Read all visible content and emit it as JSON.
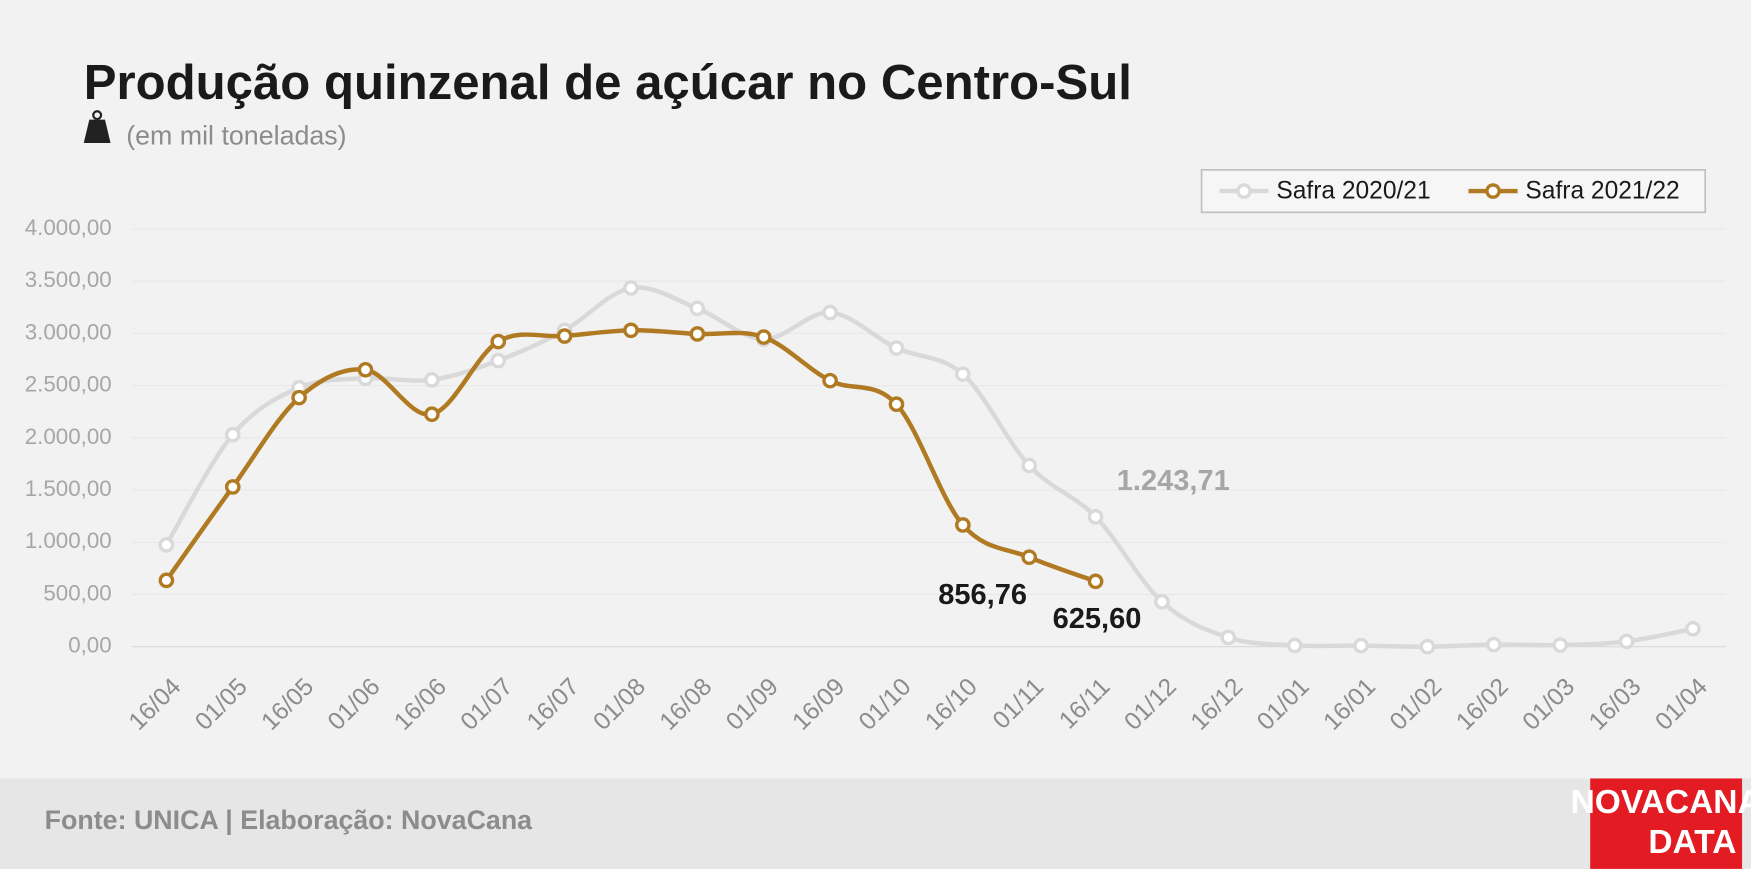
{
  "chart_data": {
    "type": "line",
    "title": "Produção quinzenal de açúcar no Centro-Sul",
    "subtitle": "(em mil toneladas)",
    "source": "Fonte: UNICA | Elaboração: NovaCana",
    "logo": [
      "NOVACANA",
      "DATA"
    ],
    "categories": [
      "16/04",
      "01/05",
      "16/05",
      "01/06",
      "16/06",
      "01/07",
      "16/07",
      "01/08",
      "16/08",
      "01/09",
      "16/09",
      "01/10",
      "16/10",
      "01/11",
      "16/11",
      "01/12",
      "16/12",
      "01/01",
      "16/01",
      "01/02",
      "16/02",
      "01/03",
      "16/03",
      "01/04"
    ],
    "series": [
      {
        "name": "Safra 2020/21",
        "color": "#d9d9d9",
        "values": [
          975,
          2030,
          2480,
          2570,
          2556,
          2740,
          3030,
          3435,
          3240,
          2945,
          3200,
          2860,
          2610,
          1735,
          1243.71,
          430,
          88,
          12,
          10,
          0,
          20,
          15,
          50,
          172
        ],
        "value_labels": [
          null,
          null,
          null,
          null,
          null,
          null,
          null,
          null,
          null,
          null,
          null,
          null,
          null,
          null,
          "1.243,71",
          null,
          null,
          null,
          null,
          null,
          null,
          null,
          null,
          null
        ],
        "label_color": "#a6a6a6"
      },
      {
        "name": "Safra 2021/22",
        "color": "#b07a22",
        "values": [
          635,
          1530,
          2385,
          2652,
          2226,
          2922,
          2975,
          3030,
          2995,
          2965,
          2548,
          2322,
          1166,
          856.76,
          625.6,
          null,
          null,
          null,
          null,
          null,
          null,
          null,
          null,
          null
        ],
        "value_labels": [
          null,
          null,
          null,
          null,
          null,
          null,
          null,
          null,
          null,
          null,
          null,
          null,
          null,
          "856,76",
          "625,60",
          null,
          null,
          null,
          null,
          null,
          null,
          null,
          null,
          null
        ],
        "label_color": "#1a1a1a"
      }
    ],
    "ylim": [
      0,
      4000
    ],
    "yticks": [
      {
        "value": 0,
        "label": "0,00"
      },
      {
        "value": 500,
        "label": "500,00"
      },
      {
        "value": 1000,
        "label": "1.000,00"
      },
      {
        "value": 1500,
        "label": "1.500,00"
      },
      {
        "value": 2000,
        "label": "2.000,00"
      },
      {
        "value": 2500,
        "label": "2.500,00"
      },
      {
        "value": 3000,
        "label": "3.000,00"
      },
      {
        "value": 3500,
        "label": "3.500,00"
      },
      {
        "value": 4000,
        "label": "4.000,00"
      }
    ],
    "grid": true,
    "legend": "top-right"
  }
}
